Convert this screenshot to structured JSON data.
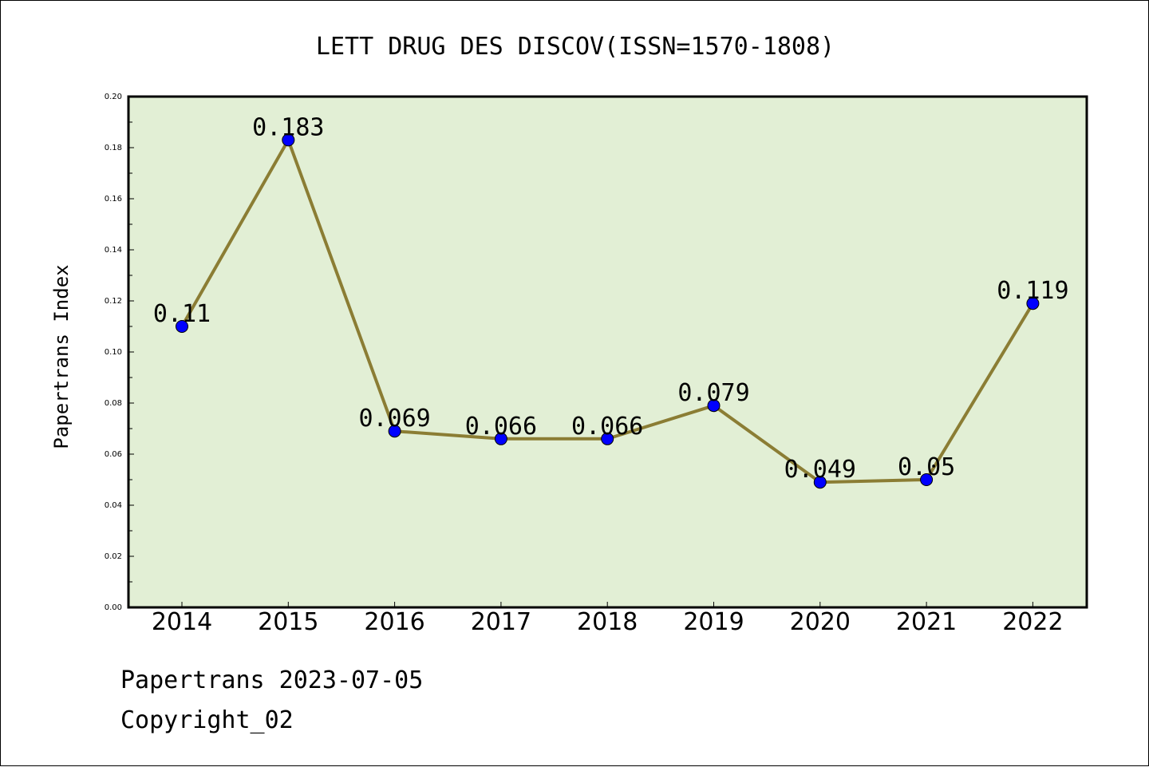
{
  "chart_data": {
    "type": "line",
    "title": "LETT DRUG DES DISCOV(ISSN=1570-1808)",
    "ylabel": "Papertrans Index",
    "xlabel": "",
    "categories": [
      "2014",
      "2015",
      "2016",
      "2017",
      "2018",
      "2019",
      "2020",
      "2021",
      "2022"
    ],
    "values": [
      0.11,
      0.183,
      0.069,
      0.066,
      0.066,
      0.079,
      0.049,
      0.05,
      0.119
    ],
    "data_labels": [
      "0.11",
      "0.183",
      "0.069",
      "0.066",
      "0.066",
      "0.079",
      "0.049",
      "0.05",
      "0.119"
    ],
    "ylim": [
      0,
      0.2
    ],
    "yticks": [
      "0.00",
      "0.02",
      "0.04",
      "0.06",
      "0.08",
      "0.10",
      "0.12",
      "0.14",
      "0.16",
      "0.18",
      "0.20"
    ],
    "grid": false,
    "colors": {
      "plot_background": "#e2efd5",
      "line": "#8b7d34",
      "marker": "#0000ff"
    }
  },
  "footer": {
    "source": "Papertrans 2023-07-05",
    "copyright": "Copyright_02"
  }
}
